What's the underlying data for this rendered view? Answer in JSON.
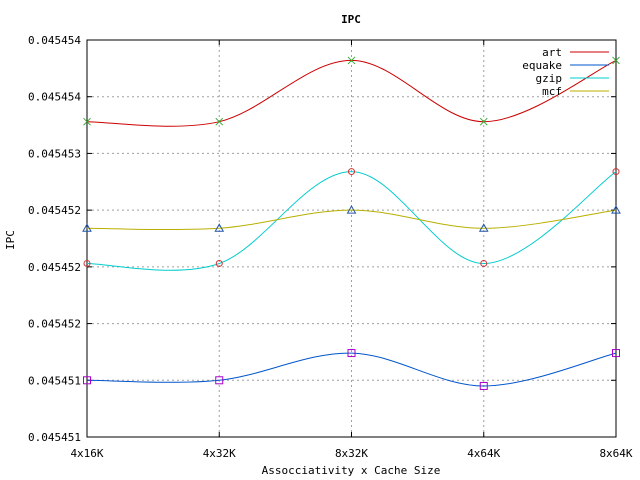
{
  "chart_data": {
    "type": "line",
    "title": "IPC",
    "xlabel": "Assocciativity x Cache Size",
    "ylabel": "IPC",
    "categories": [
      "4x16K",
      "4x32K",
      "8x32K",
      "4x64K",
      "8x64K"
    ],
    "y_tick_labels": [
      "0.045451",
      "0.045451",
      "0.045452",
      "0.045452",
      "0.045452",
      "0.045453",
      "0.045454",
      "0.045454"
    ],
    "ylim": [
      0.045451,
      0.0454545
    ],
    "grid": true,
    "legend_position": "top-right",
    "series": [
      {
        "name": "art",
        "color": "#cc0000",
        "marker": "x",
        "marker_color": "#33aa33",
        "values": [
          0.04545378,
          0.04545378,
          0.04545432,
          0.04545378,
          0.04545432
        ]
      },
      {
        "name": "equake",
        "color": "#0055cc",
        "marker": "square",
        "marker_color": "#aa00cc",
        "values": [
          0.0454515,
          0.0454515,
          0.04545174,
          0.04545145,
          0.04545174
        ]
      },
      {
        "name": "gzip",
        "color": "#00cccc",
        "marker": "circle",
        "marker_color": "#cc3333",
        "values": [
          0.04545253,
          0.04545253,
          0.04545334,
          0.04545253,
          0.04545334
        ]
      },
      {
        "name": "mcf",
        "color": "#b8b000",
        "marker": "triangle",
        "marker_color": "#2255aa",
        "values": [
          0.04545284,
          0.04545284,
          0.045453,
          0.04545284,
          0.045453
        ]
      }
    ]
  }
}
